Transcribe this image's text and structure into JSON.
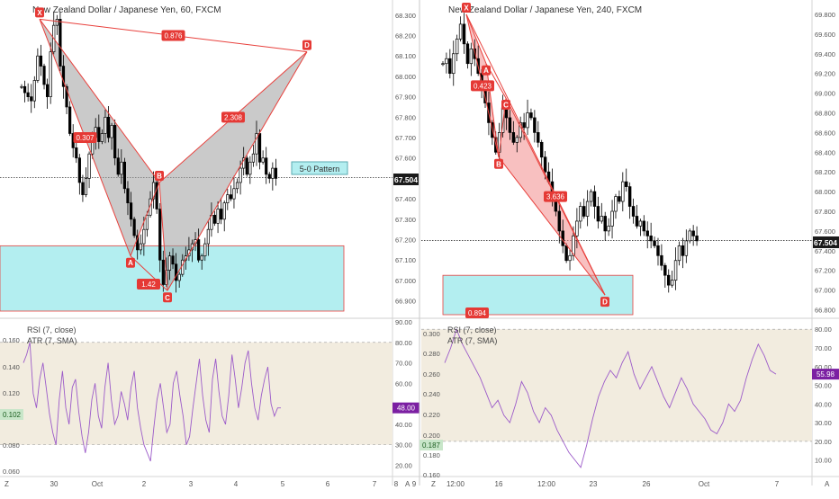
{
  "colors": {
    "candle": "#000000",
    "pattern_line": "#e8403c",
    "pattern_fill_left": "#9e9e9e",
    "pattern_fill_right": "#f28c8c",
    "zone_fill": "#b3eef0",
    "zone_border": "#e8403c",
    "rsi_band": "#f2ecdf",
    "rsi_line": "#9c5bc9",
    "price_badge": "#1a1a1a",
    "rsi_badge": "#7b1fa2",
    "atr_badge": "#c8e6c9",
    "label_bg": "#e53935"
  },
  "chart_data": [
    {
      "type": "line",
      "panel": "left",
      "title": "New Zealand Dollar / Japanese Yen, 60, FXCM",
      "price_axis": {
        "ticks": [
          "68.300",
          "68.200",
          "68.100",
          "68.000",
          "67.900",
          "67.800",
          "67.700",
          "67.600",
          "67.400",
          "67.300",
          "67.200",
          "67.100",
          "67.000",
          "66.900"
        ],
        "current": "67.504",
        "range": [
          66.85,
          68.33
        ]
      },
      "time_axis": [
        "30",
        "Oct",
        "2",
        "3",
        "4",
        "5",
        "6",
        "7",
        "8",
        "9"
      ],
      "candles_close": [
        67.95,
        67.92,
        67.9,
        67.88,
        67.98,
        68.1,
        68.05,
        67.96,
        67.9,
        68.12,
        68.25,
        68.28,
        68.05,
        67.95,
        67.85,
        67.72,
        67.65,
        67.6,
        67.48,
        67.42,
        67.5,
        67.62,
        67.7,
        67.75,
        67.68,
        67.72,
        67.8,
        67.7,
        67.76,
        67.6,
        67.52,
        67.58,
        67.45,
        67.38,
        67.3,
        67.22,
        67.15,
        67.18,
        67.25,
        67.32,
        67.4,
        67.48,
        67.35,
        67.1,
        66.98,
        67.05,
        67.12,
        67.08,
        67.0,
        67.03,
        67.1,
        67.12,
        67.15,
        67.18,
        67.2,
        67.1,
        67.12,
        67.18,
        67.25,
        67.32,
        67.28,
        67.35,
        67.3,
        67.38,
        67.42,
        67.4,
        67.45,
        67.48,
        67.55,
        67.6,
        67.52,
        67.58,
        67.62,
        67.72,
        67.58,
        67.6,
        67.52,
        67.5,
        67.55,
        67.5
      ],
      "pattern": {
        "name": "5-0 Pattern",
        "points": [
          {
            "label": "X",
            "x": "30",
            "y": 68.28
          },
          {
            "label": "A",
            "x": "Oct",
            "y": 67.12
          },
          {
            "label": "B",
            "x": "2",
            "y": 67.48
          },
          {
            "label": "C",
            "x": "2",
            "y": 66.95
          },
          {
            "label": "D",
            "x": "7",
            "y": 68.12
          }
        ],
        "ratios": [
          "0.876",
          "0.307",
          "2.308",
          "1.42"
        ]
      },
      "zone": {
        "top": 67.17,
        "bottom": 66.85
      },
      "rsi": {
        "label": "RSI (7, close)",
        "ticks": [
          "90.00",
          "80.00",
          "70.00",
          "60.00",
          "40.00",
          "30.00",
          "20.00"
        ],
        "current": "48.00",
        "band": [
          30,
          80
        ],
        "range": [
          18,
          90
        ],
        "values": [
          70,
          74,
          80,
          55,
          48,
          62,
          70,
          58,
          45,
          36,
          30,
          52,
          66,
          48,
          40,
          58,
          62,
          46,
          34,
          26,
          36,
          52,
          60,
          44,
          38,
          58,
          70,
          52,
          40,
          44,
          56,
          50,
          42,
          58,
          66,
          48,
          38,
          30,
          26,
          22,
          38,
          52,
          60,
          48,
          36,
          40,
          60,
          66,
          54,
          44,
          30,
          34,
          48,
          60,
          72,
          54,
          42,
          36,
          62,
          72,
          56,
          44,
          40,
          54,
          74,
          62,
          48,
          58,
          70,
          76,
          60,
          48,
          42,
          54,
          62,
          68,
          50,
          44,
          48,
          48
        ]
      },
      "atr": {
        "label": "ATR (7, SMA)",
        "ticks": [
          "0.160",
          "0.140",
          "0.120",
          "0.080",
          "0.060"
        ],
        "current": "0.102"
      }
    },
    {
      "type": "line",
      "panel": "right",
      "title": "New Zealand Dollar / Japanese Yen, 240, FXCM",
      "price_axis": {
        "ticks": [
          "69.800",
          "69.600",
          "69.400",
          "69.200",
          "69.000",
          "68.800",
          "68.600",
          "68.400",
          "68.200",
          "68.000",
          "67.800",
          "67.600",
          "67.400",
          "67.200",
          "67.000",
          "66.800"
        ],
        "current": "67.504",
        "range": [
          66.75,
          69.9
        ]
      },
      "time_axis": [
        "12:00",
        "16",
        "12:00",
        "23",
        "26",
        "Oct",
        "7"
      ],
      "candles_close": [
        69.3,
        69.35,
        69.2,
        69.4,
        69.55,
        69.7,
        69.5,
        69.3,
        69.45,
        69.35,
        69.2,
        69.05,
        68.9,
        68.7,
        68.55,
        68.4,
        68.6,
        68.85,
        68.75,
        68.6,
        68.5,
        68.55,
        68.7,
        68.65,
        68.8,
        68.75,
        68.6,
        68.5,
        68.35,
        68.2,
        68.1,
        67.95,
        67.8,
        67.6,
        67.45,
        67.3,
        67.35,
        67.55,
        67.7,
        67.85,
        67.75,
        67.9,
        68.0,
        67.85,
        67.7,
        67.75,
        67.6,
        67.65,
        67.8,
        67.95,
        67.9,
        68.1,
        68.05,
        67.85,
        67.75,
        67.65,
        67.7,
        67.6,
        67.55,
        67.5,
        67.45,
        67.35,
        67.25,
        67.15,
        67.05,
        67.1,
        67.3,
        67.45,
        67.35,
        67.5,
        67.6,
        67.55,
        67.5
      ],
      "pattern": {
        "name": "",
        "points": [
          {
            "label": "X",
            "x": "12:00",
            "y": 69.8
          },
          {
            "label": "A",
            "x": "12:00",
            "y": 69.3
          },
          {
            "label": "B",
            "x": "16",
            "y": 68.35
          },
          {
            "label": "C",
            "x": "16",
            "y": 68.95
          },
          {
            "label": "D",
            "x": "23",
            "y": 66.95
          }
        ],
        "ratios": [
          "0.423",
          "3.636",
          "0.894"
        ]
      },
      "zone": {
        "top": 67.15,
        "bottom": 66.75
      },
      "rsi": {
        "label": "RSI (7, close)",
        "ticks": [
          "80.00",
          "70.00",
          "60.00",
          "50.00",
          "40.00",
          "30.00",
          "20.00",
          "10.00"
        ],
        "current": "55.98",
        "band": [
          20,
          80
        ],
        "range": [
          5,
          83
        ],
        "values": [
          62,
          70,
          80,
          72,
          66,
          60,
          54,
          46,
          38,
          42,
          34,
          30,
          40,
          52,
          46,
          36,
          30,
          38,
          34,
          26,
          20,
          14,
          10,
          6,
          18,
          32,
          44,
          52,
          58,
          54,
          62,
          68,
          56,
          48,
          54,
          60,
          52,
          44,
          38,
          46,
          54,
          48,
          40,
          36,
          32,
          26,
          24,
          30,
          40,
          36,
          42,
          54,
          64,
          72,
          66,
          58,
          56
        ],
        "current_value": 55.98
      },
      "atr": {
        "label": "ATR (7, SMA)",
        "ticks": [
          "0.300",
          "0.280",
          "0.260",
          "0.240",
          "0.220",
          "0.200",
          "0.180",
          "0.160"
        ],
        "current": "0.187"
      }
    }
  ],
  "bottom_marks": {
    "left_z": "Z",
    "left_a": "A",
    "right_z": "Z",
    "right_a": "A"
  }
}
